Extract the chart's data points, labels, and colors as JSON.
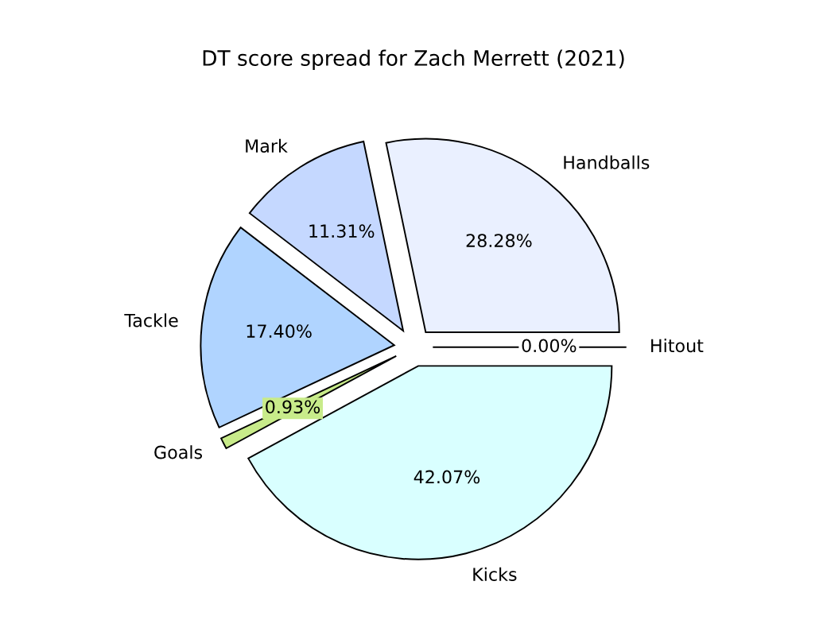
{
  "chart_data": {
    "type": "pie",
    "title": "DT score spread for Zach Merrett (2021)",
    "categories": [
      "Handballs",
      "Mark",
      "Tackle",
      "Goals",
      "Kicks",
      "Hitout"
    ],
    "values": [
      28.28,
      11.31,
      17.4,
      0.93,
      42.07,
      0.0
    ],
    "colors": [
      "#eaf0ff",
      "#c5d8ff",
      "#b0d4ff",
      "#c8eb8a",
      "#d9ffff",
      "#ffffff"
    ],
    "value_labels": [
      "28.28%",
      "11.31%",
      "17.40%",
      "0.93%",
      "42.07%",
      "0.00%"
    ],
    "legend": false
  }
}
